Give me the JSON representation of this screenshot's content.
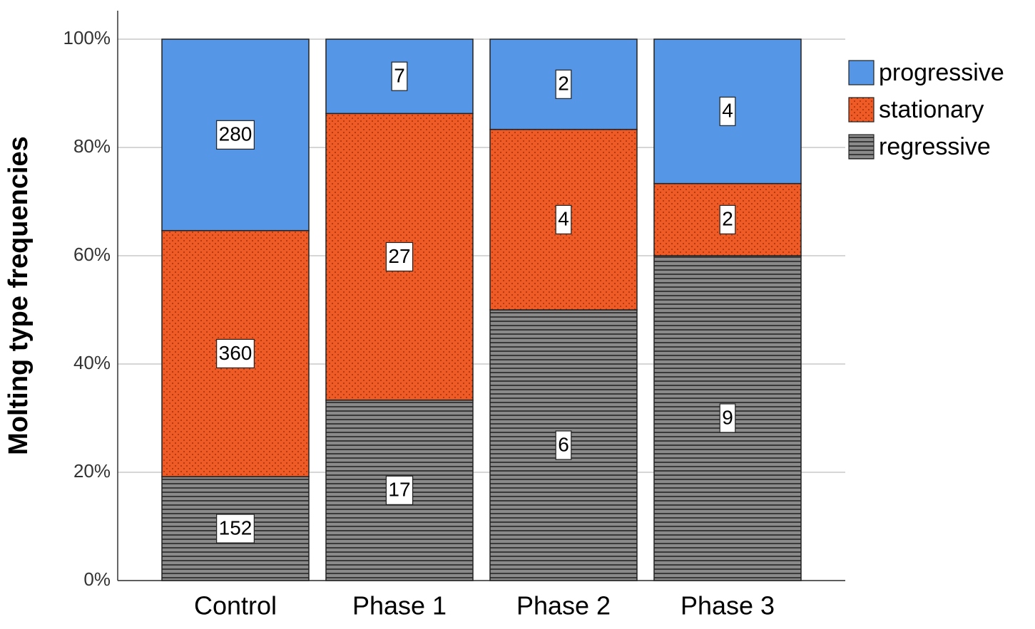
{
  "chart_data": {
    "type": "bar",
    "stacked": "percent",
    "y_label": "Molting type frequencies",
    "categories": [
      "Control",
      "Phase 1",
      "Phase 2",
      "Phase 3"
    ],
    "series": [
      {
        "name": "progressive",
        "color": "#5596e6",
        "pattern": "none",
        "values": [
          280,
          7,
          2,
          4
        ]
      },
      {
        "name": "stationary",
        "color": "#f05a24",
        "pattern": "dots",
        "values": [
          360,
          27,
          4,
          2
        ]
      },
      {
        "name": "regressive",
        "color": "#8a8a8a",
        "pattern": "stripes",
        "values": [
          152,
          17,
          6,
          9
        ]
      }
    ],
    "ylim": [
      0,
      100
    ],
    "yticks": [
      {
        "value": 0,
        "label": "0%"
      },
      {
        "value": 20,
        "label": "20%"
      },
      {
        "value": 40,
        "label": "40%"
      },
      {
        "value": 60,
        "label": "60%"
      },
      {
        "value": 80,
        "label": "80%"
      },
      {
        "value": 100,
        "label": "100%"
      }
    ],
    "grid": true,
    "legend": "right"
  }
}
